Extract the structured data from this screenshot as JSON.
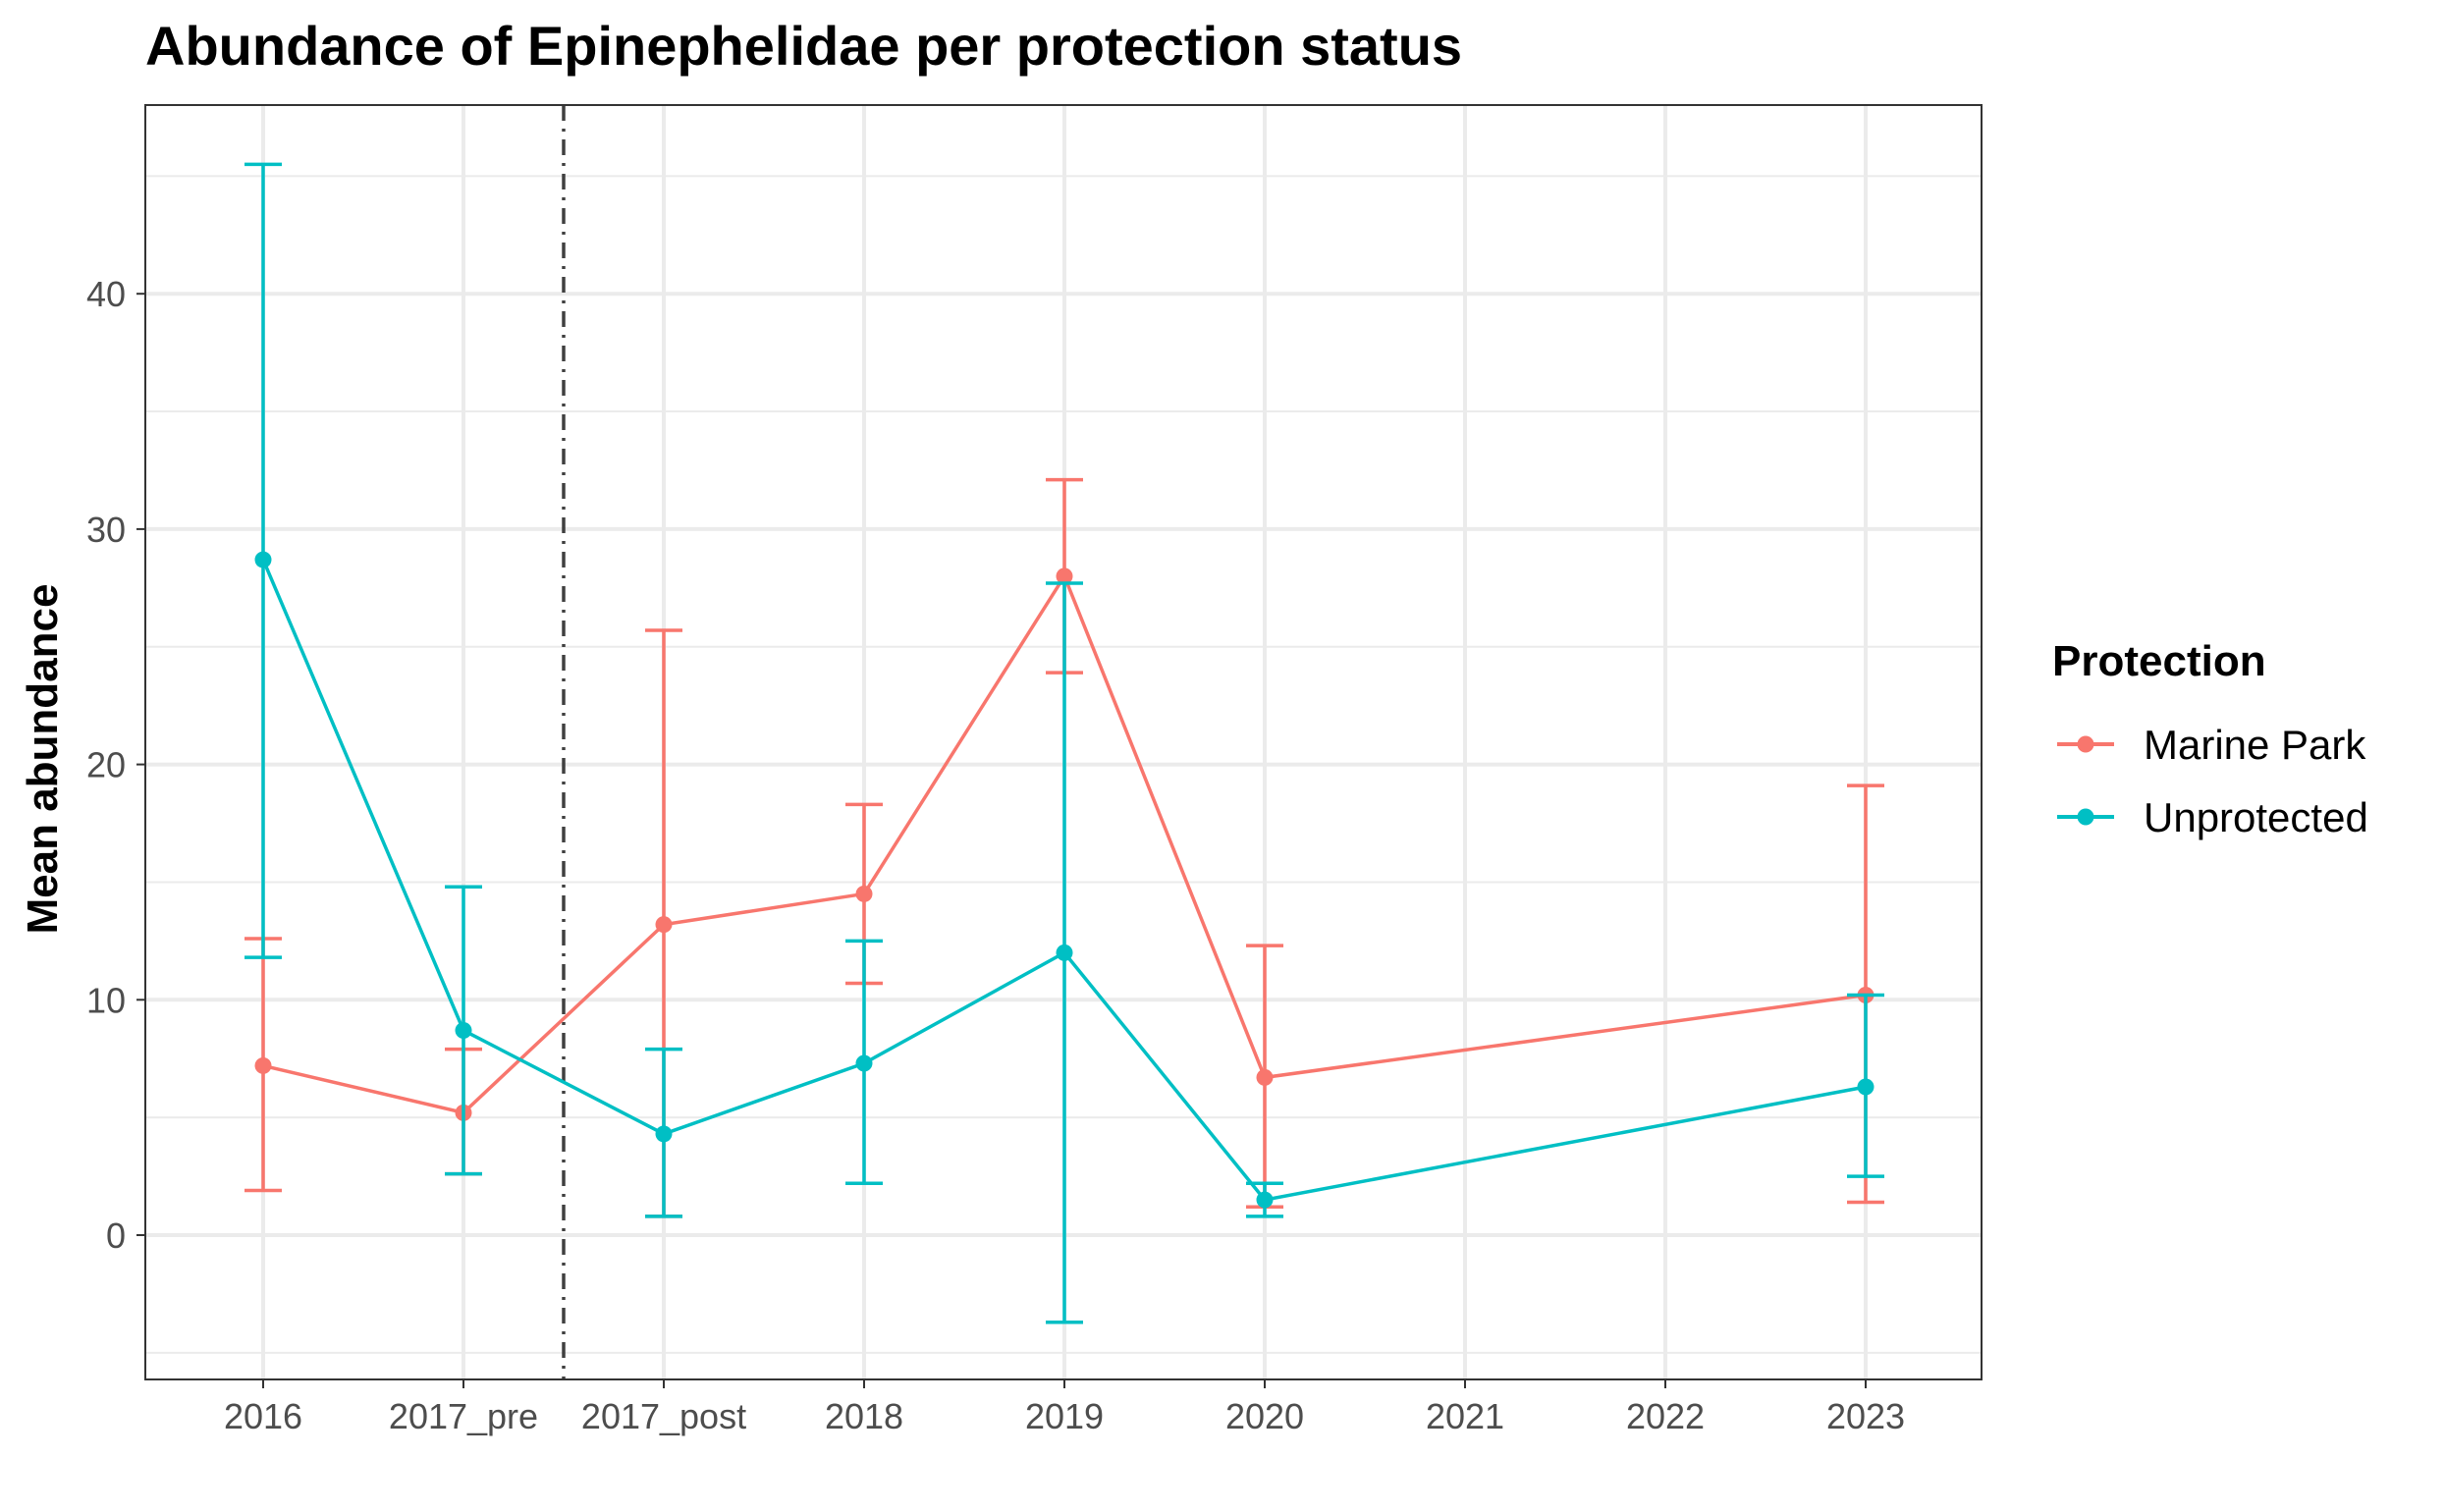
{
  "chart_data": {
    "type": "line",
    "title": "Abundance of Epinephelidae per protection status",
    "xlabel": "",
    "ylabel": "Mean abundance",
    "categories": [
      "2016",
      "2017_pre",
      "2017_post",
      "2018",
      "2019",
      "2020",
      "2021",
      "2022",
      "2023"
    ],
    "ylim": [
      -6,
      48
    ],
    "yticks": [
      0,
      10,
      20,
      30,
      40
    ],
    "grid": true,
    "reference_line": {
      "type": "vertical",
      "between": [
        "2017_pre",
        "2017_post"
      ],
      "style": "dashdot",
      "color": "#404040"
    },
    "legend": {
      "title": "Protection",
      "position": "right"
    },
    "series": [
      {
        "name": "Marine Park",
        "color": "#F8766D",
        "points": [
          {
            "x": "2016",
            "y": 7.2,
            "ymin": 1.9,
            "ymax": 12.6
          },
          {
            "x": "2017_pre",
            "y": 5.2,
            "ymin": 2.6,
            "ymax": 7.9
          },
          {
            "x": "2017_post",
            "y": 13.2,
            "ymin": 0.8,
            "ymax": 25.7
          },
          {
            "x": "2018",
            "y": 14.5,
            "ymin": 10.7,
            "ymax": 18.3
          },
          {
            "x": "2019",
            "y": 28.0,
            "ymin": 23.9,
            "ymax": 32.1
          },
          {
            "x": "2020",
            "y": 6.7,
            "ymin": 1.2,
            "ymax": 12.3
          },
          {
            "x": "2023",
            "y": 10.2,
            "ymin": 1.4,
            "ymax": 19.1
          }
        ]
      },
      {
        "name": "Unprotected",
        "color": "#00BFC4",
        "points": [
          {
            "x": "2016",
            "y": 28.7,
            "ymin": 11.8,
            "ymax": 45.5
          },
          {
            "x": "2017_pre",
            "y": 8.7,
            "ymin": 2.6,
            "ymax": 14.8
          },
          {
            "x": "2017_post",
            "y": 4.3,
            "ymin": 0.8,
            "ymax": 7.9
          },
          {
            "x": "2018",
            "y": 7.3,
            "ymin": 2.2,
            "ymax": 12.5
          },
          {
            "x": "2019",
            "y": 12.0,
            "ymin": -3.7,
            "ymax": 27.7
          },
          {
            "x": "2020",
            "y": 1.5,
            "ymin": 0.8,
            "ymax": 2.2
          },
          {
            "x": "2023",
            "y": 6.3,
            "ymin": 2.5,
            "ymax": 10.2
          }
        ]
      }
    ]
  }
}
